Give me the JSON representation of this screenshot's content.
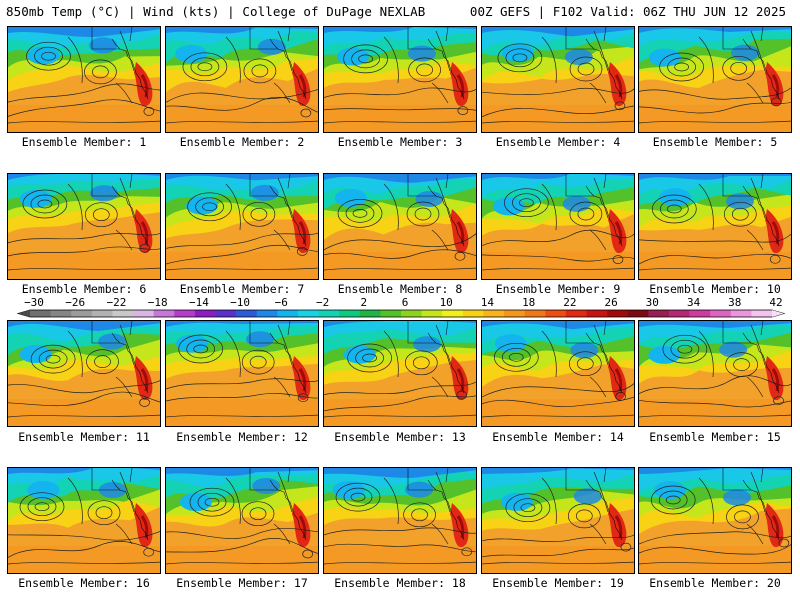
{
  "header": {
    "left_text": "850mb Temp (°C) | Wind (kts) | College of DuPage NEXLAB",
    "right_text": "00Z GEFS | F102 Valid: 06Z THU JUN 12 2025"
  },
  "panels": [
    {
      "label": "Ensemble Member: 1"
    },
    {
      "label": "Ensemble Member: 2"
    },
    {
      "label": "Ensemble Member: 3"
    },
    {
      "label": "Ensemble Member: 4"
    },
    {
      "label": "Ensemble Member: 5"
    },
    {
      "label": "Ensemble Member: 6"
    },
    {
      "label": "Ensemble Member: 7"
    },
    {
      "label": "Ensemble Member: 8"
    },
    {
      "label": "Ensemble Member: 9"
    },
    {
      "label": "Ensemble Member: 10"
    },
    {
      "label": "Ensemble Member: 11"
    },
    {
      "label": "Ensemble Member: 12"
    },
    {
      "label": "Ensemble Member: 13"
    },
    {
      "label": "Ensemble Member: 14"
    },
    {
      "label": "Ensemble Member: 15"
    },
    {
      "label": "Ensemble Member: 16"
    },
    {
      "label": "Ensemble Member: 17"
    },
    {
      "label": "Ensemble Member: 18"
    },
    {
      "label": "Ensemble Member: 19"
    },
    {
      "label": "Ensemble Member: 20"
    }
  ],
  "colorbar": {
    "tick_labels": [
      "-30",
      "-26",
      "-22",
      "-18",
      "-14",
      "-10",
      "-6",
      "-2",
      "2",
      "6",
      "10",
      "14",
      "18",
      "22",
      "26",
      "30",
      "34",
      "38",
      "42"
    ],
    "colors": [
      "#6f6f6f",
      "#858585",
      "#9c9c9c",
      "#b2b2b2",
      "#c8c8c8",
      "#d8b6e6",
      "#c678d8",
      "#b53cc8",
      "#8a1ebe",
      "#5a32c8",
      "#2c5ad8",
      "#1e88e6",
      "#14b4ee",
      "#18d2e6",
      "#14d2b4",
      "#10c880",
      "#1eb446",
      "#54c02a",
      "#8cd21e",
      "#c4e61a",
      "#f0f01e",
      "#f8d214",
      "#f8b41a",
      "#f49620",
      "#f07818",
      "#ec4e14",
      "#e02814",
      "#c41414",
      "#a00a0a",
      "#7c0a14",
      "#961e50",
      "#b42878",
      "#cc3ca0",
      "#de64c4",
      "#ea96dc",
      "#f4c4ee"
    ]
  }
}
